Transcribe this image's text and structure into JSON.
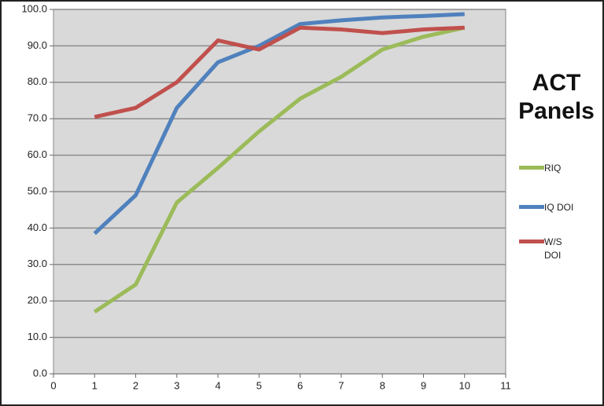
{
  "chart_data": {
    "type": "line",
    "title": "ACT Panels",
    "x": [
      1,
      2,
      3,
      4,
      5,
      6,
      7,
      8,
      9,
      10
    ],
    "series": [
      {
        "name": "RIQ",
        "color": "#9bbb59",
        "values": [
          17,
          24.5,
          47,
          56.5,
          66.5,
          75.5,
          81.5,
          89,
          92.5,
          95
        ]
      },
      {
        "name": "IQ DOI",
        "color": "#4f81bd",
        "values": [
          38.5,
          49,
          73,
          85.5,
          90,
          96,
          97,
          97.8,
          98.2,
          98.7
        ]
      },
      {
        "name": "W/S DOI",
        "color": "#c0504d",
        "values": [
          70.5,
          73,
          80,
          91.5,
          89,
          95,
          94.5,
          93.5,
          94.5,
          95
        ]
      }
    ],
    "xlim": [
      0,
      11
    ],
    "xticks": [
      0,
      1,
      2,
      3,
      4,
      5,
      6,
      7,
      8,
      9,
      10,
      11
    ],
    "ylim": [
      0,
      100
    ],
    "yticks": [
      {
        "value": 0,
        "label": "0.0"
      },
      {
        "value": 10,
        "label": "10.0"
      },
      {
        "value": 20,
        "label": "20.0"
      },
      {
        "value": 30,
        "label": "30.0"
      },
      {
        "value": 40,
        "label": "40.0"
      },
      {
        "value": 50,
        "label": "50.0"
      },
      {
        "value": 60,
        "label": "60.0"
      },
      {
        "value": 70,
        "label": "70.0"
      },
      {
        "value": 80,
        "label": "80.0"
      },
      {
        "value": 90,
        "label": "90.0"
      },
      {
        "value": 100,
        "label": "100.0"
      }
    ],
    "grid": true
  }
}
